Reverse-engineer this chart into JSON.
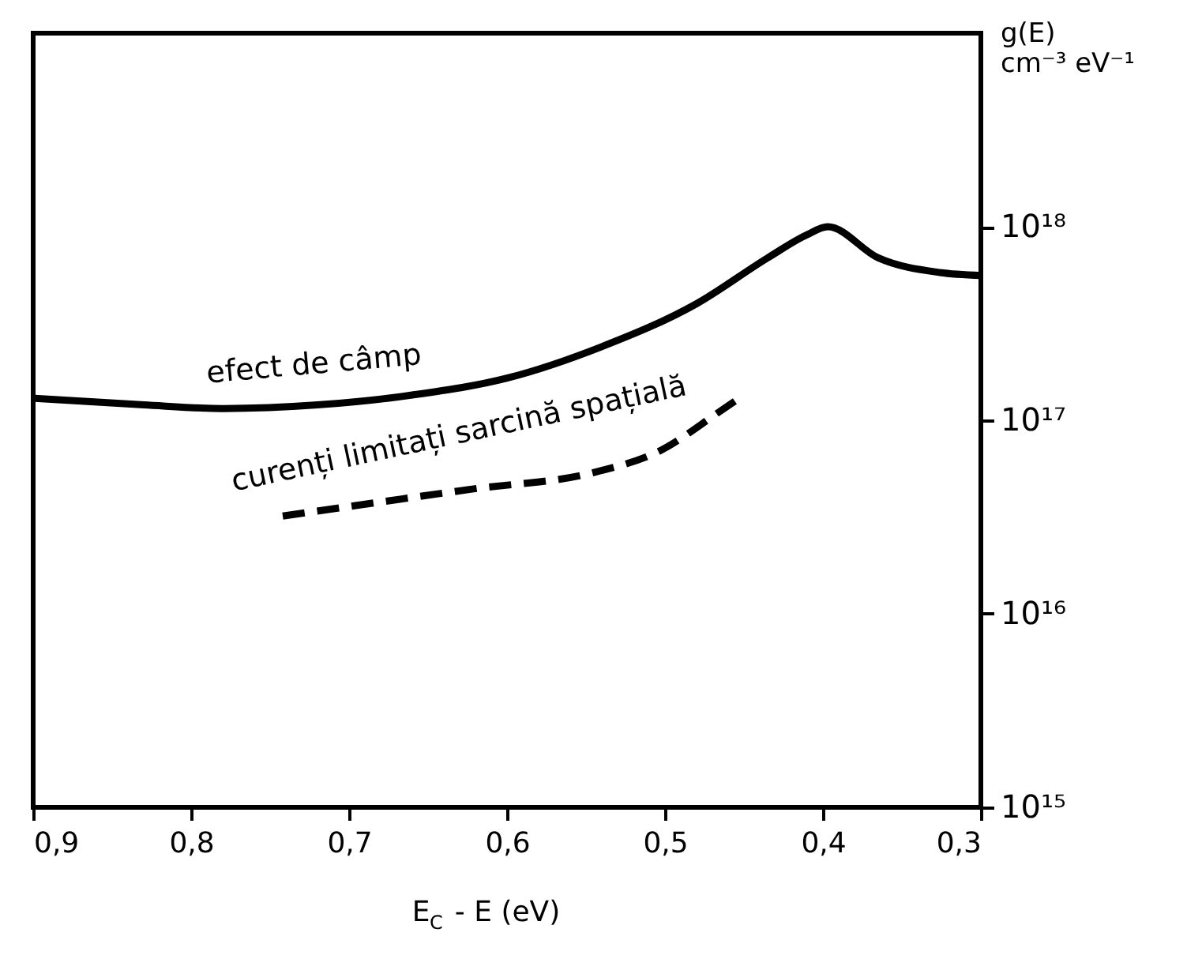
{
  "chart_data": {
    "type": "line",
    "xlabel": "E$_{C}$ - E (eV)",
    "ylabel": "g(E)\ncm⁻³ eV⁻¹",
    "log": "y",
    "grid": false,
    "xlim": [
      0.9,
      0.3
    ],
    "xticks": [
      {
        "value": 0.9,
        "label": "0,9"
      },
      {
        "value": 0.8,
        "label": "0,8"
      },
      {
        "value": 0.7,
        "label": "0,7"
      },
      {
        "value": 0.6,
        "label": "0,6"
      },
      {
        "value": 0.5,
        "label": "0,5"
      },
      {
        "value": 0.4,
        "label": "0,4"
      },
      {
        "value": 0.3,
        "label": "0,3"
      }
    ],
    "ylim": [
      1000000000000000.0,
      1e+19
    ],
    "yticks": [
      {
        "value": 1000000000000000.0,
        "label": "10¹⁵"
      },
      {
        "value": 1e+16,
        "label": "10¹⁶"
      },
      {
        "value": 1e+17,
        "label": "10¹⁷"
      },
      {
        "value": 1e+18,
        "label": "10¹⁸"
      }
    ],
    "series": [
      {
        "name": "efect de câmp",
        "color": "#000000",
        "line_style": "solid",
        "x": [
          0.9,
          0.83,
          0.78,
          0.72,
          0.66,
          0.6,
          0.54,
          0.48,
          0.435,
          0.41,
          0.397,
          0.365,
          0.326,
          0.3
        ],
        "values": [
          1.3e+17,
          1.2e+17,
          1.15e+17,
          1.2e+17,
          1.35e+17,
          1.65e+17,
          2.4e+17,
          4e+17,
          6.9e+17,
          9.1e+17,
          1e+18,
          6.9e+17,
          5.8e+17,
          5.6e+17
        ]
      },
      {
        "name": "curenți limitați sarcină spațială",
        "color": "#000000",
        "line_style": "dashed",
        "x": [
          0.742,
          0.623,
          0.544,
          0.504,
          0.466,
          0.453
        ],
        "values": [
          3.2e+16,
          4.4e+16,
          5.4e+16,
          6.9e+16,
          1.1e+17,
          1.3e+17
        ]
      }
    ]
  }
}
